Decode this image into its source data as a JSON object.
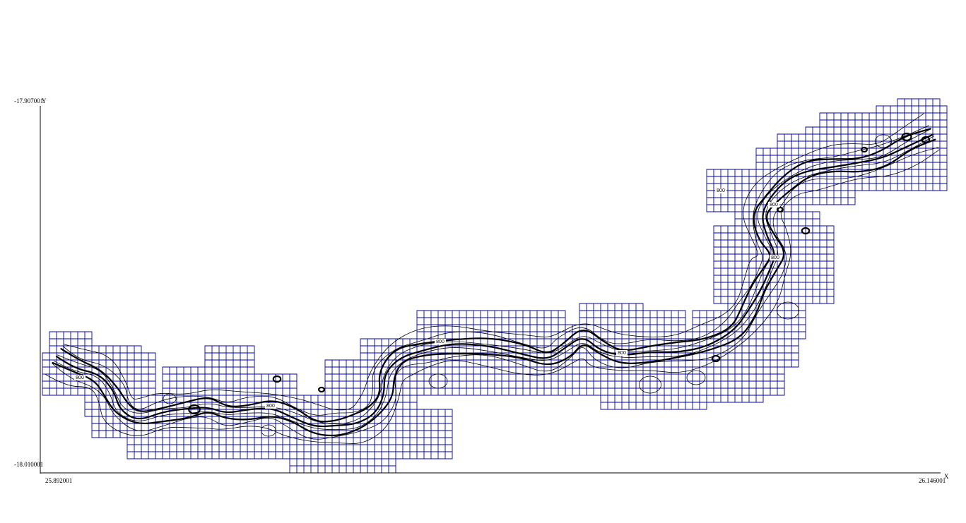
{
  "chart_data": {
    "type": "contour-grid",
    "title": "",
    "xlabel": "X",
    "ylabel": "Y",
    "xlim": [
      25.892001,
      26.146001
    ],
    "ylim": [
      -18.010001,
      -17.907001
    ],
    "x_tick_labels": [
      "25.892001",
      "26.146001"
    ],
    "y_tick_labels": [
      "-17.907001",
      "-18.010001"
    ],
    "contour_labels": [
      "800",
      "800",
      "800",
      "800",
      "800",
      "800",
      "800"
    ],
    "grid_color": "#0000aa",
    "contour_color": "#000000"
  }
}
